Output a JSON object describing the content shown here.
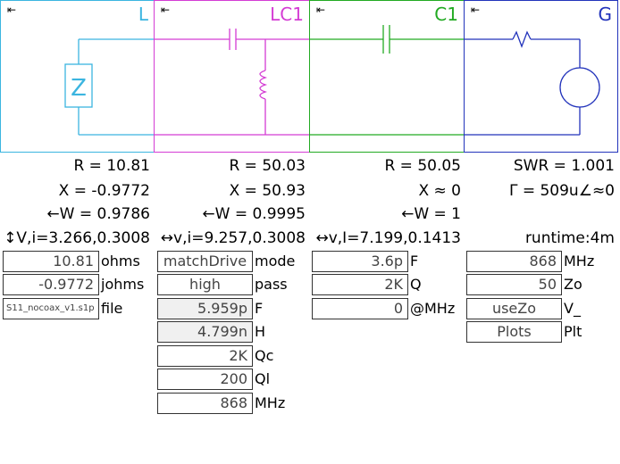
{
  "panels": {
    "L": {
      "title": "L",
      "collapse": "⇤",
      "color": "#3bb5e0"
    },
    "LC1": {
      "title": "LC1",
      "collapse": "⇤",
      "color": "#d43cd4"
    },
    "C1": {
      "title": "C1",
      "collapse": "⇤",
      "color": "#22aa22"
    },
    "G": {
      "title": "G",
      "collapse": "⇤",
      "color": "#2233bb"
    }
  },
  "readouts": {
    "L": {
      "r": "R = 10.81",
      "x": "X = -0.9772",
      "w": "←W = 0.9786",
      "vi": "↕V,i=3.266,0.3008"
    },
    "LC1": {
      "r": "R = 50.03",
      "x": "X = 50.93",
      "w": "←W = 0.9995",
      "vi": "↔v,i=9.257,0.3008"
    },
    "C1": {
      "r": "R = 50.05",
      "x": "X ≈ 0",
      "w": "←W = 1",
      "vi": "↔v,I=7.199,0.1413"
    },
    "G": {
      "swr": "SWR = 1.001",
      "gamma": "Γ = 509u∠≈0",
      "runtime": "runtime:4m"
    }
  },
  "fields": {
    "L": [
      {
        "value": "10.81",
        "label": "ohms"
      },
      {
        "value": "-0.9772",
        "label": "johms"
      },
      {
        "value": "S11_nocoax_v1.s1p",
        "label": "file"
      }
    ],
    "LC1": [
      {
        "value": "matchDrive",
        "label": "mode"
      },
      {
        "value": "high",
        "label": "pass"
      },
      {
        "value": "5.959p",
        "label": "F"
      },
      {
        "value": "4.799n",
        "label": "H"
      },
      {
        "value": "2K",
        "label": "Qc"
      },
      {
        "value": "200",
        "label": "Ql"
      },
      {
        "value": "868",
        "label": "MHz"
      }
    ],
    "C1": [
      {
        "value": "3.6p",
        "label": "F"
      },
      {
        "value": "2K",
        "label": "Q"
      },
      {
        "value": "0",
        "label": "@MHz"
      }
    ],
    "G": [
      {
        "value": "868",
        "label": "MHz"
      },
      {
        "value": "50",
        "label": "Zo"
      },
      {
        "value": "useZo",
        "label": "V_"
      },
      {
        "value": "Plots",
        "label": "Plt"
      }
    ]
  },
  "icons": {
    "load": "Z"
  }
}
